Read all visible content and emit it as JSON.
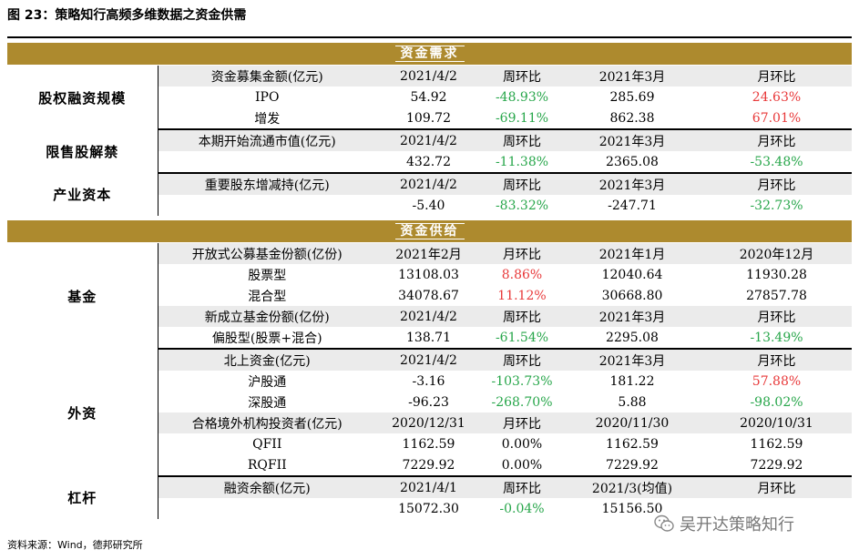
{
  "title": "图 23：策略知行高频多维数据之资金供需",
  "sections": {
    "demand": "资金需求",
    "supply": "资金供给"
  },
  "groups": {
    "equity": {
      "label": "股权融资规模",
      "rows": [
        {
          "c1": "资金募集金额(亿元)",
          "c2": "2021/4/2",
          "c3": "周环比",
          "c4": "2021年3月",
          "c5": "月环比",
          "hdr": true
        },
        {
          "c1": "IPO",
          "c2": "54.92",
          "c3": "-48.93%",
          "c4": "285.69",
          "c5": "24.63%",
          "s3": "green",
          "s5": "red"
        },
        {
          "c1": "增发",
          "c2": "109.72",
          "c3": "-69.11%",
          "c4": "862.38",
          "c5": "67.01%",
          "s3": "green",
          "s5": "red"
        }
      ]
    },
    "unlock": {
      "label": "限售股解禁",
      "rows": [
        {
          "c1": "本期开始流通市值(亿元)",
          "c2": "2021/4/2",
          "c3": "周环比",
          "c4": "2021年3月",
          "c5": "月环比",
          "hdr": true
        },
        {
          "c1": "",
          "c2": "432.72",
          "c3": "-11.38%",
          "c4": "2365.08",
          "c5": "-53.48%",
          "s3": "green",
          "s5": "green"
        }
      ]
    },
    "industry": {
      "label": "产业资本",
      "rows": [
        {
          "c1": "重要股东增减持(亿元)",
          "c2": "2021/4/2",
          "c3": "周环比",
          "c4": "2021年3月",
          "c5": "月环比",
          "hdr": true
        },
        {
          "c1": "",
          "c2": "-5.40",
          "c3": "-83.32%",
          "c4": "-247.71",
          "c5": "-32.73%",
          "s3": "green",
          "s5": "green"
        }
      ]
    },
    "fund": {
      "label": "基金",
      "rows": [
        {
          "c1": "开放式公募基金份额(亿份)",
          "c2": "2021年2月",
          "c3": "月环比",
          "c4": "2021年1月",
          "c5": "2020年12月",
          "hdr": true
        },
        {
          "c1": "股票型",
          "c2": "13108.03",
          "c3": "8.86%",
          "c4": "12040.64",
          "c5": "11930.28",
          "s3": "red"
        },
        {
          "c1": "混合型",
          "c2": "34078.67",
          "c3": "11.12%",
          "c4": "30668.80",
          "c5": "27857.78",
          "s3": "red"
        },
        {
          "c1": "新成立基金份额(亿份)",
          "c2": "2021/4/2",
          "c3": "周环比",
          "c4": "2021年3月",
          "c5": "月环比",
          "hdr": true
        },
        {
          "c1": "偏股型(股票+混合)",
          "c2": "138.71",
          "c3": "-61.54%",
          "c4": "2295.08",
          "c5": "-13.49%",
          "s3": "green",
          "s5": "green"
        }
      ]
    },
    "foreign": {
      "label": "外资",
      "rows": [
        {
          "c1": "北上资金(亿元)",
          "c2": "2021/4/2",
          "c3": "周环比",
          "c4": "2021年3月",
          "c5": "月环比",
          "hdr": true
        },
        {
          "c1": "沪股通",
          "c2": "-3.16",
          "c3": "-103.73%",
          "c4": "181.22",
          "c5": "57.88%",
          "s3": "green",
          "s5": "red"
        },
        {
          "c1": "深股通",
          "c2": "-96.23",
          "c3": "-268.70%",
          "c4": "5.88",
          "c5": "-98.02%",
          "s3": "green",
          "s5": "green"
        },
        {
          "c1": "合格境外机构投资者(亿元)",
          "c2": "2020/12/31",
          "c3": "月环比",
          "c4": "2020/11/30",
          "c5": "2020/10/31",
          "hdr": true
        },
        {
          "c1": "QFII",
          "c2": "1162.59",
          "c3": "0.00%",
          "c4": "1162.59",
          "c5": "1162.59"
        },
        {
          "c1": "RQFII",
          "c2": "7229.92",
          "c3": "0.00%",
          "c4": "7229.92",
          "c5": "7229.92"
        }
      ]
    },
    "leverage": {
      "label": "杠杆",
      "rows": [
        {
          "c1": "融资余额(亿元)",
          "c2": "2021/4/1",
          "c3": "周环比",
          "c4": "2021/3(均值)",
          "c5": "月环比",
          "hdr": true
        },
        {
          "c1": "",
          "c2": "15072.30",
          "c3": "-0.04%",
          "c4": "15156.50",
          "c5": "",
          "s3": "green"
        }
      ]
    }
  },
  "source": "资料来源：Wind，德邦研究所",
  "watermark": "吴开达策略知行",
  "colors": {
    "band": "#ad8a2e",
    "header_row": "#ebebeb",
    "positive": "#e8393a",
    "negative": "#27a64a"
  }
}
